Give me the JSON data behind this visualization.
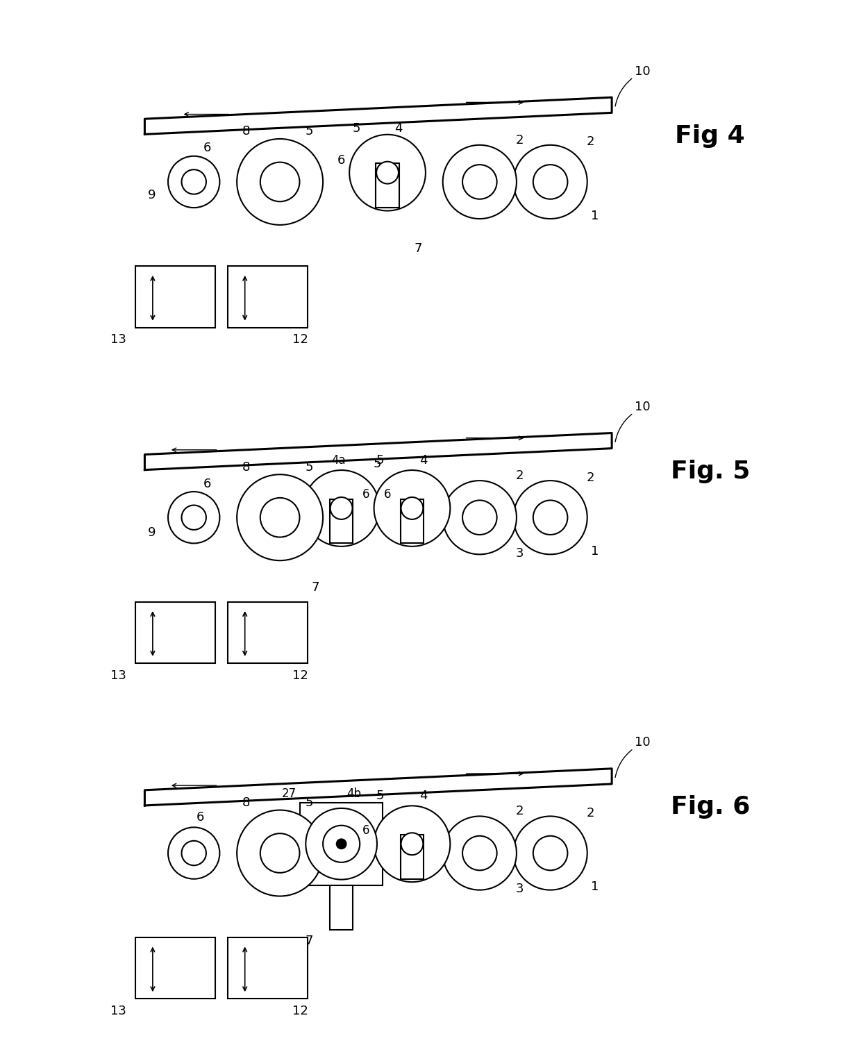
{
  "bg_color": "#ffffff",
  "line_color": "#000000",
  "lw": 1.5,
  "fig4_label": "Fig 4",
  "fig5_label": "Fig. 5",
  "fig6_label": "Fig. 6",
  "fig_label_fontsize": 26,
  "num_fontsize": 13
}
